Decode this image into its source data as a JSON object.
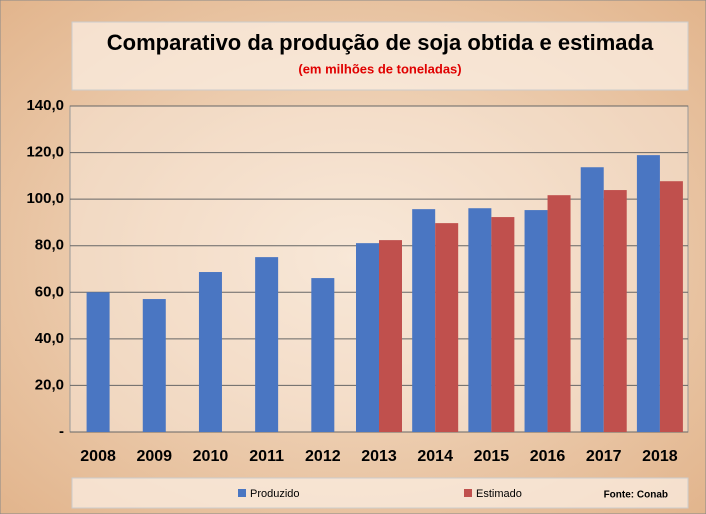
{
  "chart_data": {
    "type": "bar",
    "title": "Comparativo da produção de soja  obtida e estimada",
    "subtitle": "(em milhões de toneladas)",
    "source": "Fonte: Conab",
    "categories": [
      "2008",
      "2009",
      "2010",
      "2011",
      "2012",
      "2013",
      "2014",
      "2015",
      "2016",
      "2017",
      "2018"
    ],
    "series": [
      {
        "name": "Produzido",
        "color": "#4a76c2",
        "values": [
          60.0,
          57.1,
          68.7,
          75.1,
          66.1,
          81.1,
          95.7,
          96.1,
          95.3,
          113.7,
          118.9
        ]
      },
      {
        "name": "Estimado",
        "color": "#c0504d",
        "values": [
          null,
          null,
          null,
          null,
          null,
          82.4,
          89.7,
          92.3,
          101.7,
          103.9,
          107.7
        ]
      }
    ],
    "ylim": [
      0,
      140
    ],
    "yticks": [
      {
        "value": 0,
        "label": "-"
      },
      {
        "value": 20,
        "label": "20,0"
      },
      {
        "value": 40,
        "label": "40,0"
      },
      {
        "value": 60,
        "label": "60,0"
      },
      {
        "value": 80,
        "label": "80,0"
      },
      {
        "value": 100,
        "label": "100,0"
      },
      {
        "value": 120,
        "label": "120,0"
      },
      {
        "value": 140,
        "label": "140,0"
      }
    ],
    "grid": true,
    "legend": "bottom"
  }
}
